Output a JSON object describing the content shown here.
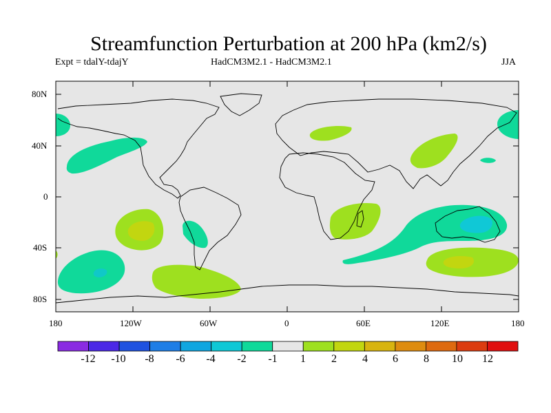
{
  "title": "Streamfunction Perturbation at 200 hPa (km2/s)",
  "subtitle_left": "Expt = tdalY-tdajY",
  "subtitle_center": "HadCM3M2.1 - HadCM3M2.1",
  "subtitle_right": "JJA",
  "y_axis": {
    "labels": [
      "80N",
      "40N",
      "0",
      "40S",
      "80S"
    ]
  },
  "x_axis": {
    "labels": [
      "180",
      "120W",
      "60W",
      "0",
      "60E",
      "120E",
      "180"
    ]
  },
  "colorbar": {
    "labels": [
      "-12",
      "-10",
      "-8",
      "-6",
      "-4",
      "-2",
      "-1",
      "1",
      "2",
      "4",
      "6",
      "8",
      "10",
      "12"
    ],
    "colors": [
      "#8a2be2",
      "#4b28e6",
      "#1f52e0",
      "#1e7ee6",
      "#10a6e0",
      "#0fc8d6",
      "#10d99a",
      "#e6e6e6",
      "#9ee01f",
      "#c2d610",
      "#d8b410",
      "#de8c10",
      "#de6a10",
      "#dc3c10",
      "#e01010"
    ]
  },
  "colors": {
    "map_background": "#e6e6e6",
    "coast": "#000000"
  }
}
